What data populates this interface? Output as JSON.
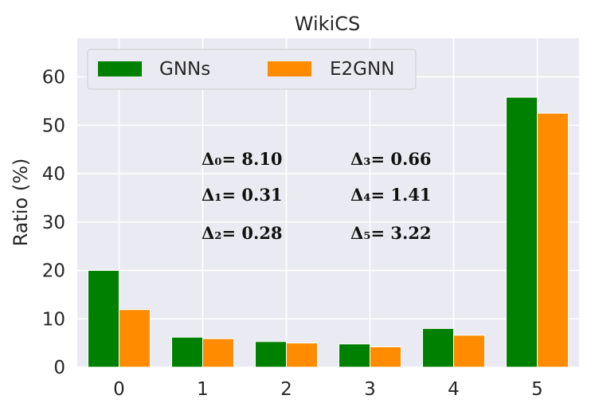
{
  "chart_data": {
    "type": "bar",
    "title": "WikiCS",
    "xlabel": "",
    "ylabel": "Ratio (%)",
    "categories": [
      "0",
      "1",
      "2",
      "3",
      "4",
      "5"
    ],
    "series": [
      {
        "name": "GNNs",
        "values": [
          20.0,
          6.2,
          5.3,
          4.8,
          8.0,
          55.8
        ],
        "color": "#008000"
      },
      {
        "name": "E2GNN",
        "values": [
          11.9,
          5.9,
          5.0,
          4.2,
          6.6,
          52.5
        ],
        "color": "#ff8c00"
      }
    ],
    "ylim": [
      0,
      68
    ],
    "yticks": [
      "0",
      "10",
      "20",
      "30",
      "40",
      "50",
      "60"
    ],
    "grid": true,
    "background": "#eaeaf2",
    "legend_position": "top-left",
    "annotations": [
      {
        "text": "Δ₀= 8.10"
      },
      {
        "text": "Δ₁= 0.31"
      },
      {
        "text": "Δ₂= 0.28"
      },
      {
        "text": "Δ₃= 0.66"
      },
      {
        "text": "Δ₄= 1.41"
      },
      {
        "text": "Δ₅= 3.22"
      }
    ]
  }
}
